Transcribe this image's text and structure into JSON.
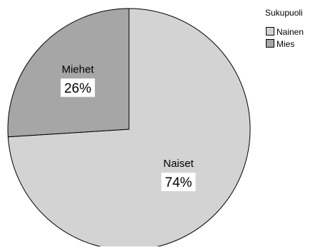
{
  "chart_data": {
    "type": "pie",
    "slices": [
      {
        "label": "Naiset",
        "legend": "Nainen",
        "value": 74,
        "value_label": "74%",
        "color": "#d3d3d3"
      },
      {
        "label": "Miehet",
        "legend": "Mies",
        "value": 26,
        "value_label": "26%",
        "color": "#a6a6a6"
      }
    ],
    "legend": {
      "title": "Sukupuoli",
      "placement": "top-right"
    },
    "start": "12 o'clock",
    "direction": "clockwise"
  }
}
